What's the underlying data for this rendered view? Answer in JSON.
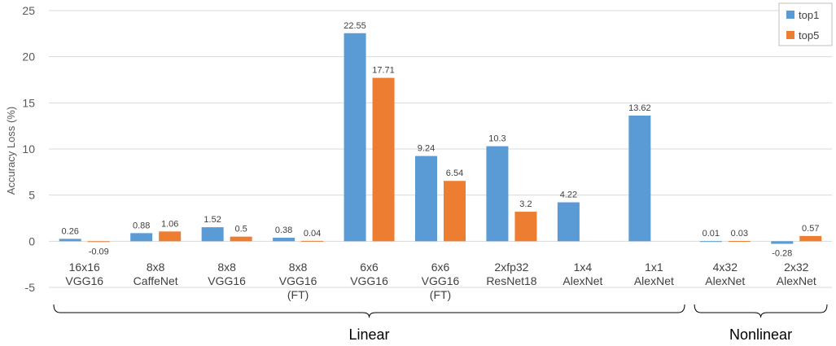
{
  "chart_data": {
    "type": "bar",
    "title": "",
    "xlabel": "",
    "ylabel": "Accuracy Loss (%)",
    "ylim": [
      -5,
      25
    ],
    "yticks": [
      -5,
      0,
      5,
      10,
      15,
      20,
      25
    ],
    "grid": true,
    "legend_position": "top-right",
    "categories": [
      [
        "16x16",
        "VGG16"
      ],
      [
        "8x8",
        "CaffeNet"
      ],
      [
        "8x8",
        "VGG16"
      ],
      [
        "8x8",
        "VGG16",
        "(FT)"
      ],
      [
        "6x6",
        "VGG16"
      ],
      [
        "6x6",
        "VGG16",
        "(FT)"
      ],
      [
        "2xfp32",
        "ResNet18"
      ],
      [
        "1x4",
        "AlexNet"
      ],
      [
        "1x1",
        "AlexNet"
      ],
      [
        "4x32",
        "AlexNet"
      ],
      [
        "2x32",
        "AlexNet"
      ]
    ],
    "series": [
      {
        "name": "top1",
        "color": "#5b9bd5",
        "values": [
          0.26,
          0.88,
          1.52,
          0.38,
          22.55,
          9.24,
          10.3,
          4.22,
          13.62,
          0.01,
          -0.28
        ]
      },
      {
        "name": "top5",
        "color": "#ed7d31",
        "values": [
          -0.09,
          1.06,
          0.5,
          0.04,
          17.71,
          6.54,
          3.2,
          null,
          null,
          0.03,
          0.57
        ]
      }
    ],
    "groups": [
      {
        "label": "Linear",
        "from": 0,
        "to": 8
      },
      {
        "label": "Nonlinear",
        "from": 9,
        "to": 10
      }
    ]
  }
}
